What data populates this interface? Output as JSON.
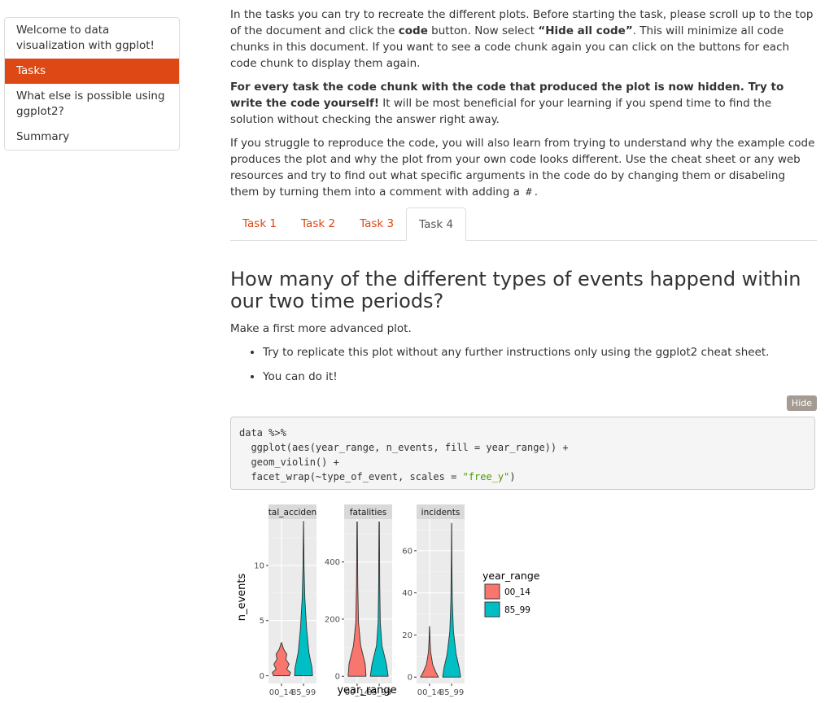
{
  "toc": {
    "items": [
      {
        "label": "Welcome to data visualization with ggplot!"
      },
      {
        "label": "Tasks"
      },
      {
        "label": "What else is possible using ggplot2?"
      },
      {
        "label": "Summary"
      }
    ]
  },
  "intro": {
    "p1a": "In the tasks you can try to recreate the different plots. Before starting the task, please scroll up to the top of the document and click the ",
    "p1b": "code",
    "p1c": " button. Now select ",
    "p1d": "“Hide all code”",
    "p1e": ". This will minimize all code chunks in this document. If you want to see a code chunk again you can click on the buttons for each code chunk to display them again.",
    "p2a": "For every task the code chunk with the code that produced the plot is now hidden. Try to write the code yourself!",
    "p2b": " It will be most beneficial for your learning if you spend time to find the solution without checking the answer right away.",
    "p3a": "If you struggle to reproduce the code, you will also learn from trying to understand why the example code produces the plot and why the plot from your own code looks different. Use the cheat sheet or any web resources and try to find out what specific arguments in the code do by changing them or disabeling them by turning them into a comment with adding a ",
    "p3b": "#",
    "p3c": "."
  },
  "tabs": [
    {
      "label": "Task 1"
    },
    {
      "label": "Task 2"
    },
    {
      "label": "Task 3"
    },
    {
      "label": "Task 4"
    }
  ],
  "section": {
    "heading": "How many of the different types of events happend within our two time periods?",
    "subtitle": "Make a first more advanced plot.",
    "bullets": [
      "Try to replicate this plot without any further instructions only using the ggplot2 cheat sheet.",
      "You can do it!"
    ],
    "hide_label": "Hide"
  },
  "code": {
    "l1": "data %>%",
    "l2": "  ggplot(aes(year_range, n_events, fill = year_range)) +",
    "l3": "  geom_violin() +",
    "l4a": "  facet_wrap(~type_of_event, scales = ",
    "l4b": "\"free_y\"",
    "l4c": ")"
  },
  "chart_data": {
    "type": "violin",
    "xlabel": "year_range",
    "ylabel": "n_events",
    "categories": [
      "00_14",
      "85_99"
    ],
    "legend": {
      "title": "year_range",
      "entries": [
        {
          "name": "00_14",
          "color": "#f8766d"
        },
        {
          "name": "85_99",
          "color": "#00bfc4"
        }
      ]
    },
    "facets": [
      {
        "name": "total_accidents",
        "strip_label": "tal_acciden",
        "ylim": [
          -0.7,
          14.2
        ],
        "yticks": [
          0,
          5,
          10
        ],
        "series": [
          {
            "name": "00_14",
            "min": 0,
            "max": 3
          },
          {
            "name": "85_99",
            "min": 0,
            "max": 14
          }
        ]
      },
      {
        "name": "fatalities",
        "strip_label": "fatalities",
        "ylim": [
          -25,
          550
        ],
        "yticks": [
          0,
          200,
          400
        ],
        "series": [
          {
            "name": "00_14",
            "min": 0,
            "max": 540
          },
          {
            "name": "85_99",
            "min": 0,
            "max": 540
          }
        ]
      },
      {
        "name": "incidents",
        "strip_label": "incidents",
        "ylim": [
          -3,
          75
        ],
        "yticks": [
          0,
          20,
          40,
          60
        ],
        "series": [
          {
            "name": "00_14",
            "min": 0,
            "max": 24
          },
          {
            "name": "85_99",
            "min": 0,
            "max": 73
          }
        ]
      }
    ]
  }
}
